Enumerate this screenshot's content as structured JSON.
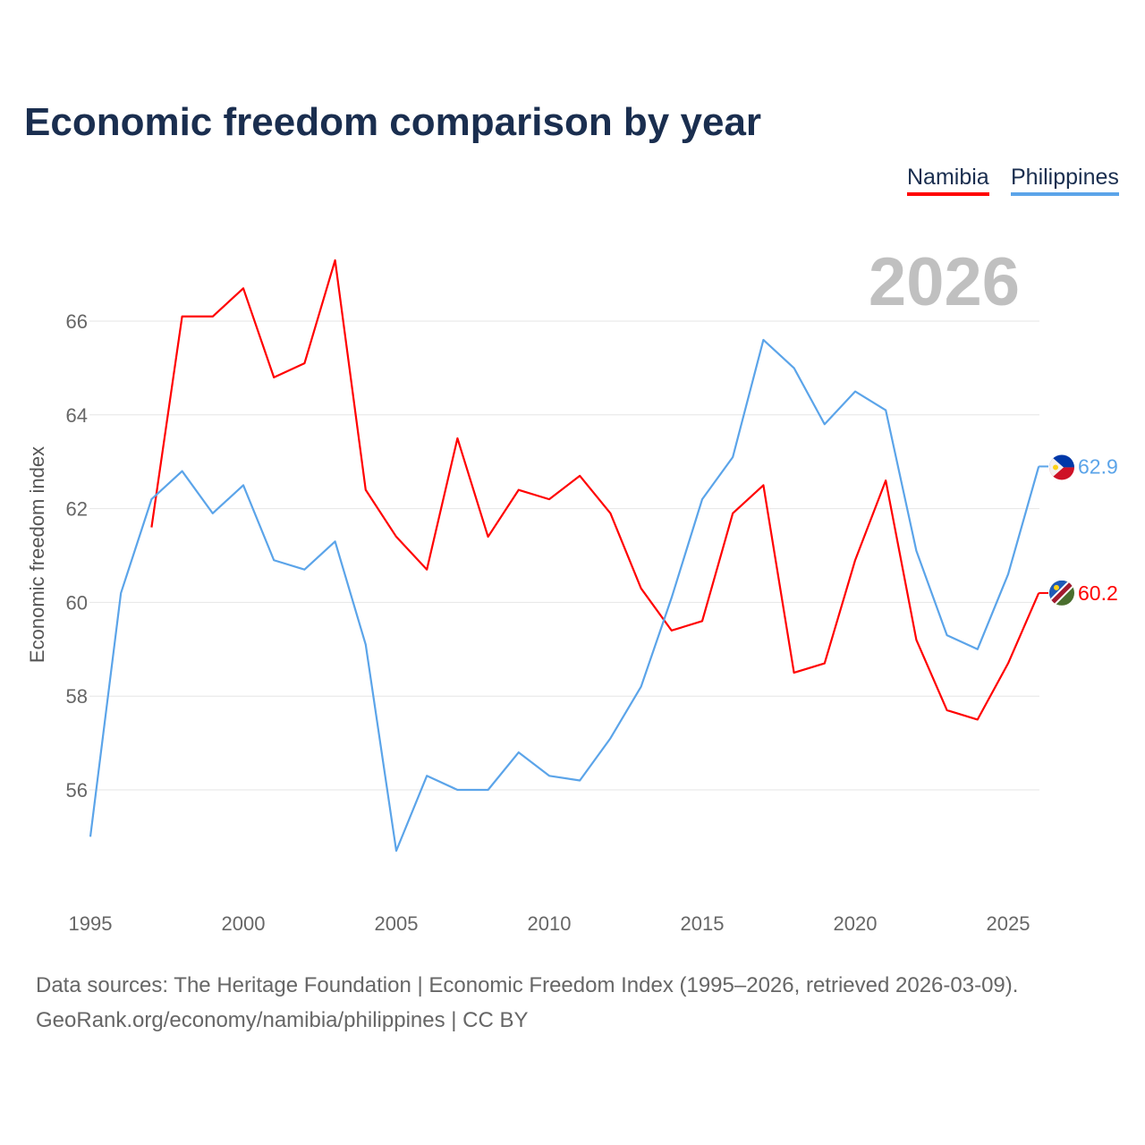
{
  "chart_data": {
    "type": "line",
    "title": "Economic freedom comparison by year",
    "ylabel": "Economic freedom index",
    "xlabel": "",
    "year_label": "2026",
    "ylim": [
      53.8,
      67.8
    ],
    "xlim": [
      1995,
      2026
    ],
    "yticks": [
      56,
      58,
      60,
      62,
      64,
      66
    ],
    "xticks": [
      1995,
      2000,
      2005,
      2010,
      2015,
      2020,
      2025
    ],
    "grid": true,
    "legend_position": "top-right",
    "series": [
      {
        "name": "Namibia",
        "color": "#ff0000",
        "end_label": "60.2",
        "flag": "namibia-flag",
        "x": [
          1997,
          1998,
          1999,
          2000,
          2001,
          2002,
          2003,
          2004,
          2005,
          2006,
          2007,
          2008,
          2009,
          2010,
          2011,
          2012,
          2013,
          2014,
          2015,
          2016,
          2017,
          2018,
          2019,
          2020,
          2021,
          2022,
          2023,
          2024,
          2025,
          2026
        ],
        "values": [
          61.6,
          66.1,
          66.1,
          66.7,
          64.8,
          65.1,
          67.3,
          62.4,
          61.4,
          60.7,
          63.5,
          61.4,
          62.4,
          62.2,
          62.7,
          61.9,
          60.3,
          59.4,
          59.6,
          61.9,
          62.5,
          58.5,
          58.7,
          60.9,
          62.6,
          59.2,
          57.7,
          57.5,
          58.7,
          60.2
        ]
      },
      {
        "name": "Philippines",
        "color": "#5ba4e9",
        "end_label": "62.9",
        "flag": "philippines-flag",
        "x": [
          1995,
          1996,
          1997,
          1998,
          1999,
          2000,
          2001,
          2002,
          2003,
          2004,
          2005,
          2006,
          2007,
          2008,
          2009,
          2010,
          2011,
          2012,
          2013,
          2014,
          2015,
          2016,
          2017,
          2018,
          2019,
          2020,
          2021,
          2022,
          2023,
          2024,
          2025,
          2026
        ],
        "values": [
          55.0,
          60.2,
          62.2,
          62.8,
          61.9,
          62.5,
          60.9,
          60.7,
          61.3,
          59.1,
          54.7,
          56.3,
          56.0,
          56.0,
          56.8,
          56.3,
          56.2,
          57.1,
          58.2,
          60.1,
          62.2,
          63.1,
          65.6,
          65.0,
          63.8,
          64.5,
          64.1,
          61.1,
          59.3,
          59.0,
          60.6,
          62.9
        ]
      }
    ]
  },
  "footer": {
    "line1": "Data sources: The Heritage Foundation | Economic Freedom Index (1995–2026, retrieved 2026-03-09).",
    "line2": "GeoRank.org/economy/namibia/philippines | CC BY"
  }
}
